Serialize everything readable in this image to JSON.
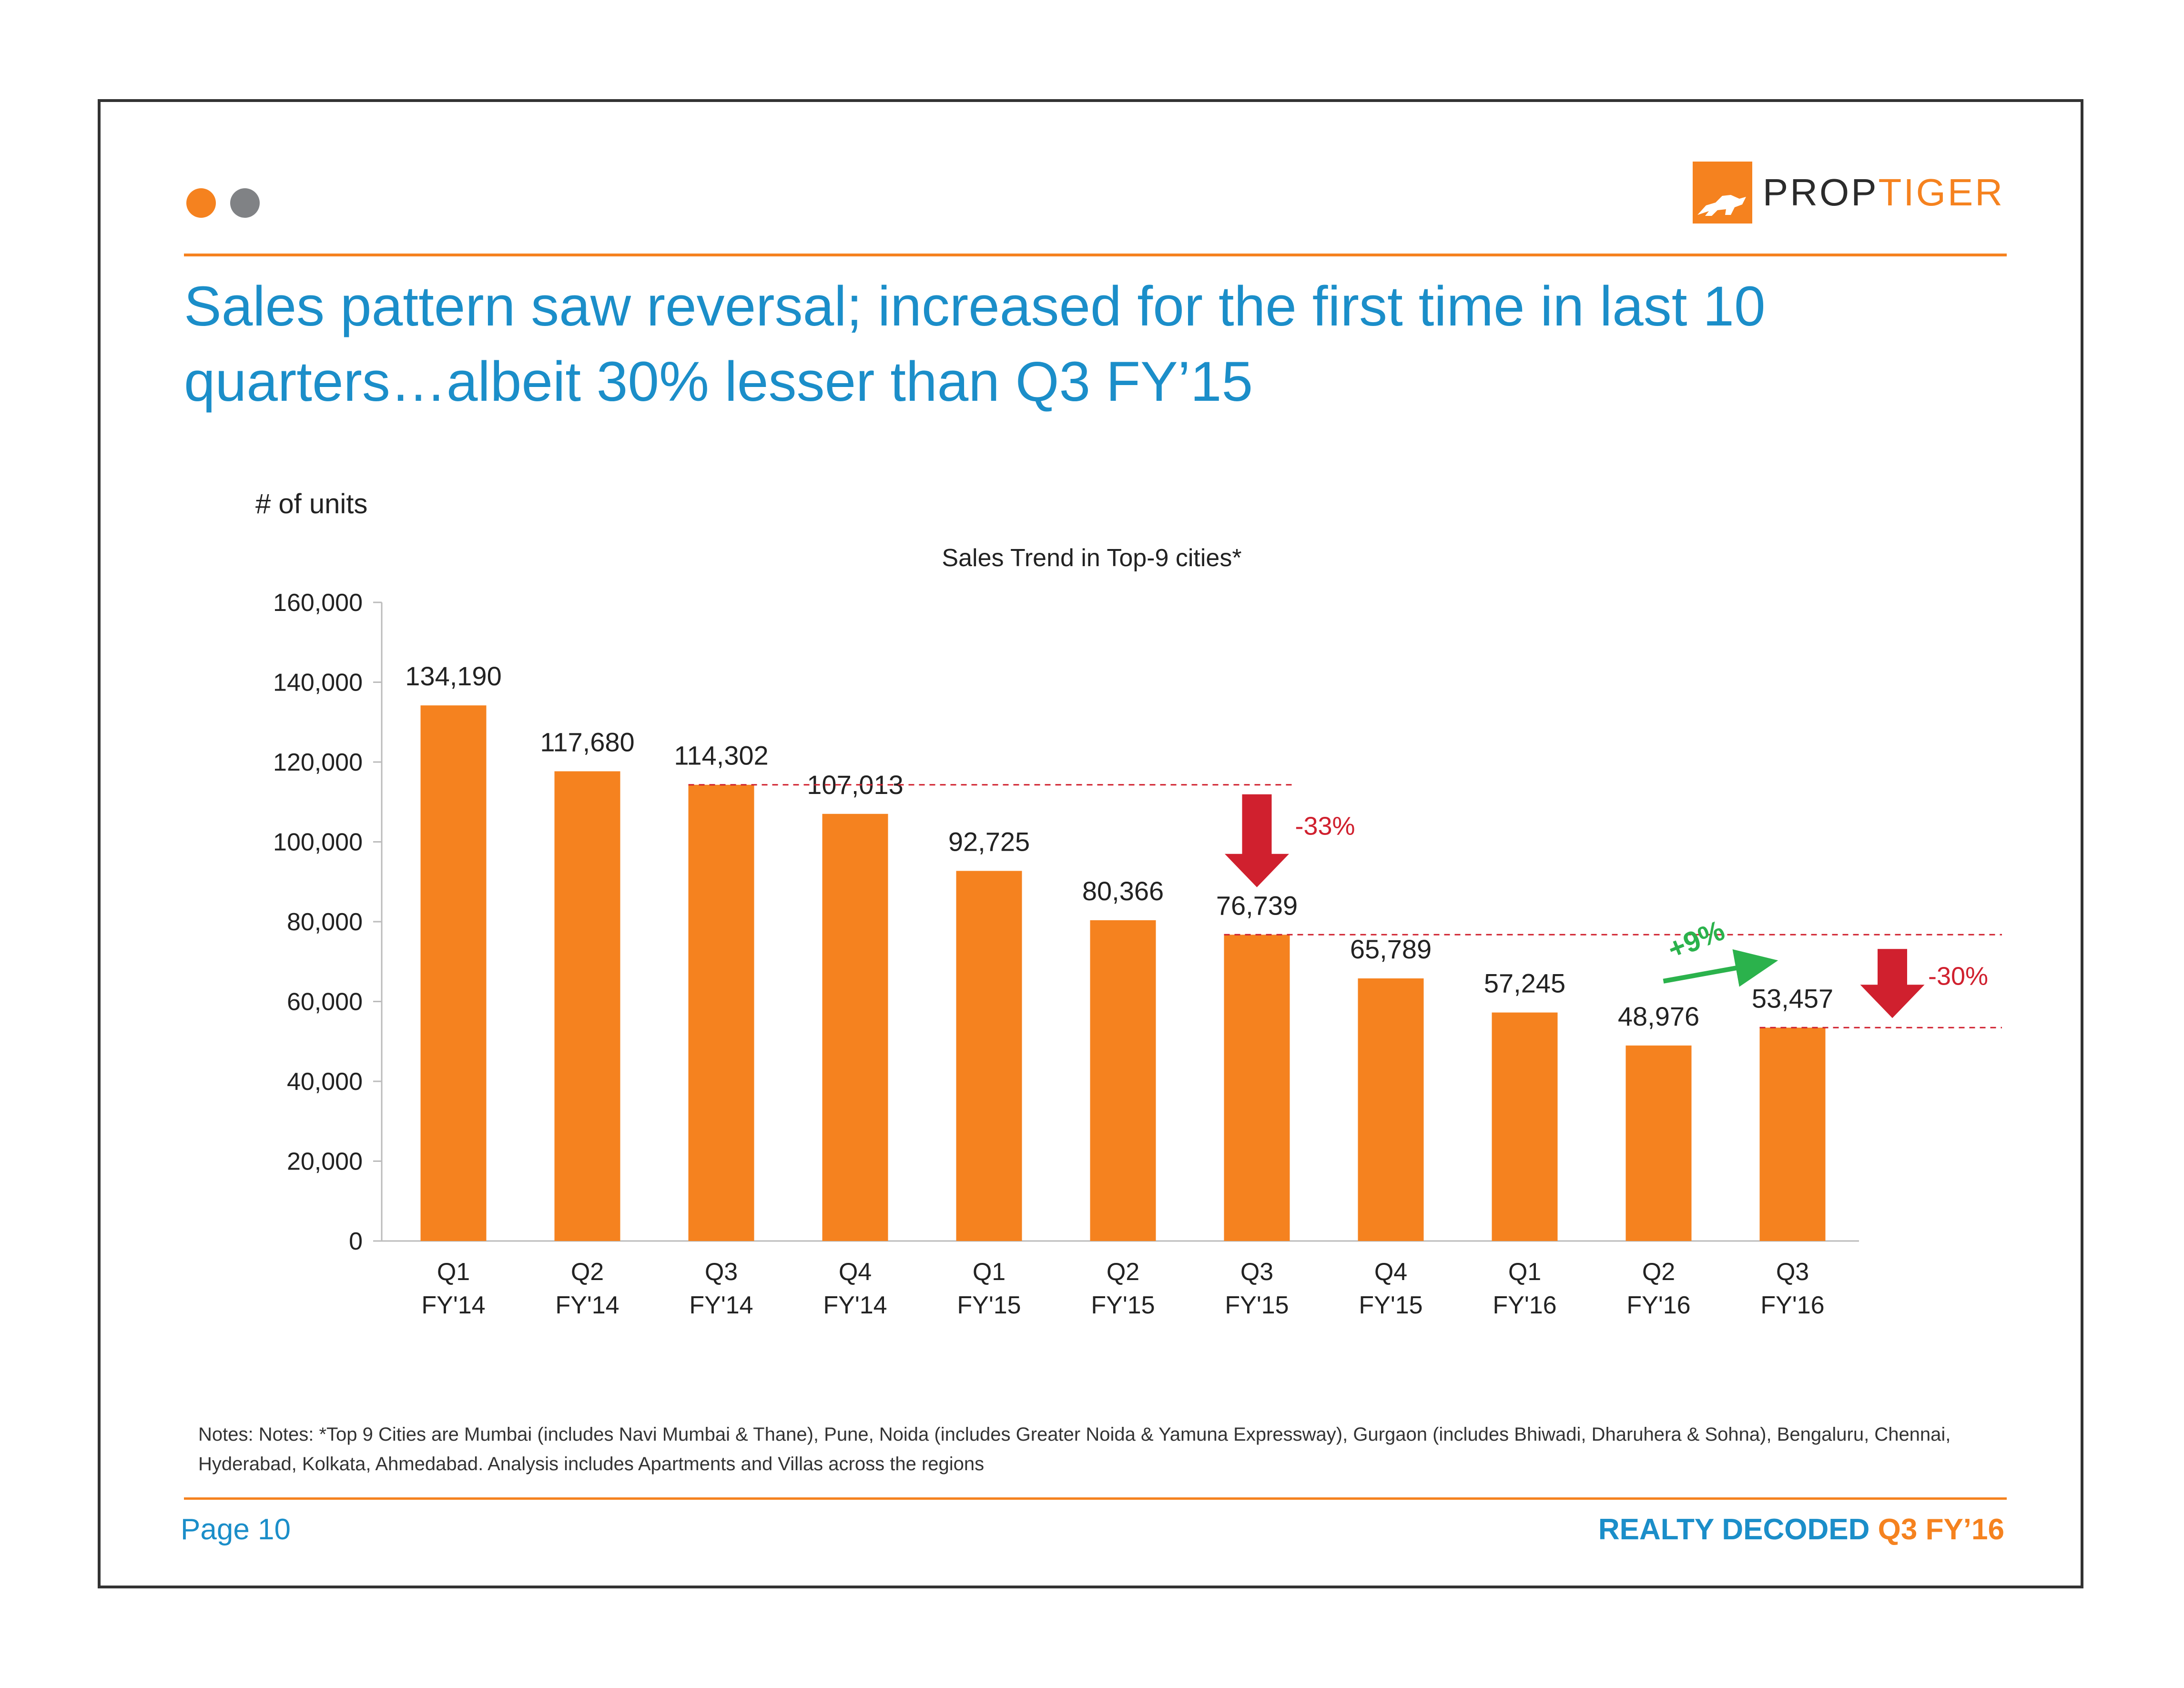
{
  "title": "Sales pattern saw reversal; increased for the first time in last 10 quarters…albeit 30% lesser than Q3 FY’15",
  "logo": {
    "prop": "PROP",
    "tiger": "TIGER"
  },
  "y_unit_label": "# of units",
  "colors": {
    "bar": "#f5821f",
    "accent_blue": "#1b8ec9",
    "down": "#d0202e",
    "up": "#2bb24c"
  },
  "chart_data": {
    "type": "bar",
    "title": "Sales Trend in Top-9 cities*",
    "categories": [
      [
        "Q1",
        "FY'14"
      ],
      [
        "Q2",
        "FY'14"
      ],
      [
        "Q3",
        "FY'14"
      ],
      [
        "Q4",
        "FY'14"
      ],
      [
        "Q1",
        "FY'15"
      ],
      [
        "Q2",
        "FY'15"
      ],
      [
        "Q3",
        "FY'15"
      ],
      [
        "Q4",
        "FY'15"
      ],
      [
        "Q1",
        "FY'16"
      ],
      [
        "Q2",
        "FY'16"
      ],
      [
        "Q3",
        "FY'16"
      ]
    ],
    "values": [
      134190,
      117680,
      114302,
      107013,
      92725,
      80366,
      76739,
      65789,
      57245,
      48976,
      53457
    ],
    "value_labels": [
      "134,190",
      "117,680",
      "114,302",
      "107,013",
      "92,725",
      "80,366",
      "76,739",
      "65,789",
      "57,245",
      "48,976",
      "53,457"
    ],
    "ylim": [
      0,
      160000
    ],
    "yticks": [
      0,
      20000,
      40000,
      60000,
      80000,
      100000,
      120000,
      140000,
      160000
    ],
    "ytick_labels": [
      "0",
      "20,000",
      "40,000",
      "60,000",
      "80,000",
      "100,000",
      "120,000",
      "140,000",
      "160,000"
    ],
    "ylabel": "# of units",
    "annotations": [
      {
        "text": "-33%",
        "from_index": 2,
        "to_index": 6,
        "direction": "down"
      },
      {
        "text": "+9%",
        "from_index": 9,
        "to_index": 10,
        "direction": "up"
      },
      {
        "text": "-30%",
        "from_index": 6,
        "to_index": 10,
        "direction": "down"
      }
    ]
  },
  "notes": "Notes: Notes: *Top 9 Cities are Mumbai (includes Navi Mumbai & Thane), Pune, Noida (includes Greater Noida & Yamuna Expressway), Gurgaon (includes Bhiwadi, Dharuhera & Sohna), Bengaluru, Chennai, Hyderabad, Kolkata, Ahmedabad. Analysis includes Apartments and Villas across the regions",
  "footer": {
    "page": "Page 10",
    "brand": "REALTY DECODED",
    "edition": "Q3 FY’16"
  }
}
